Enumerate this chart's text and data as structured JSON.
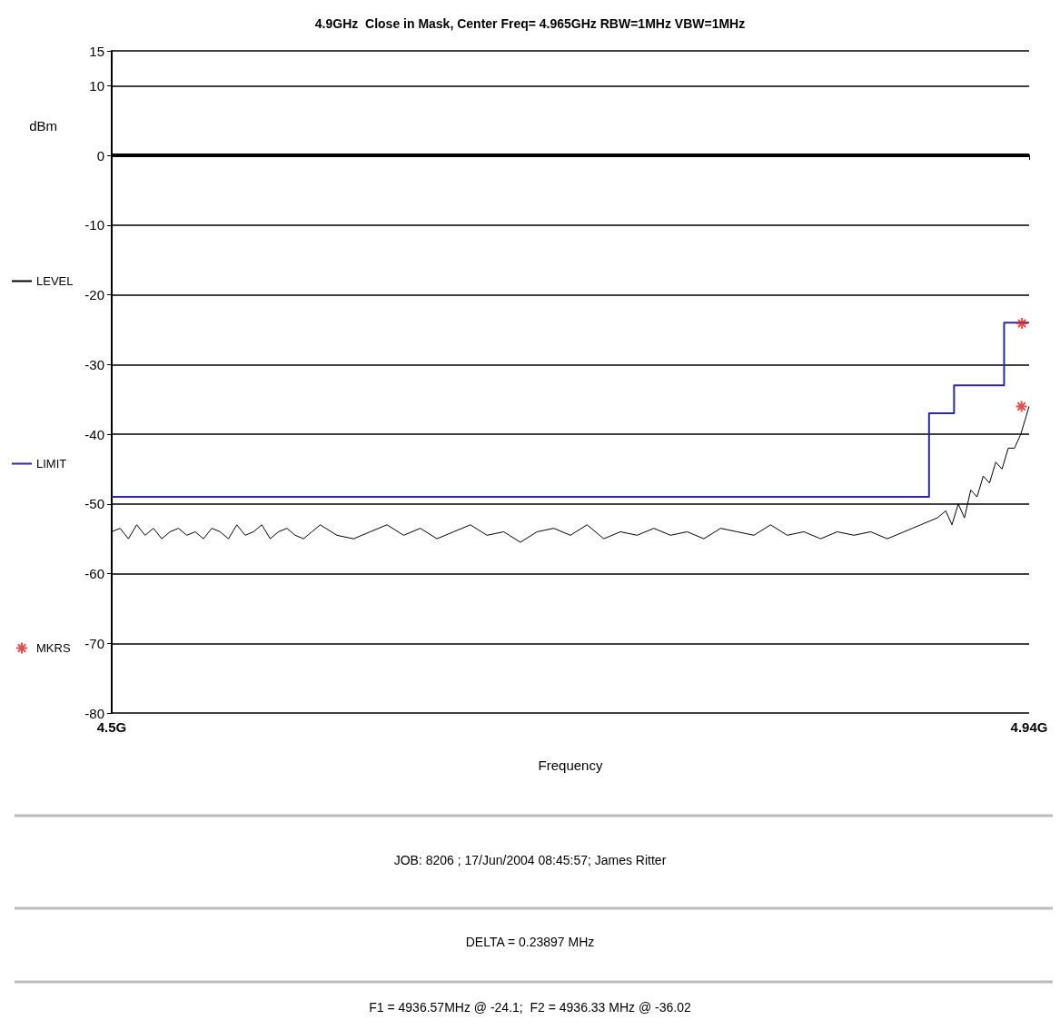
{
  "chart_data": {
    "type": "line",
    "title": "4.9GHz  Close in Mask, Center Freq= 4.965GHz RBW=1MHz VBW=1MHz",
    "xlabel": "Frequency",
    "ylabel": "dBm",
    "xlim": [
      4.5,
      4.94
    ],
    "xticks": [
      {
        "value": 4.5,
        "label": "4.5G"
      },
      {
        "value": 4.94,
        "label": "4.94G"
      }
    ],
    "ylim": [
      -80,
      15
    ],
    "yticks": [
      -80,
      -70,
      -60,
      -50,
      -40,
      -30,
      -20,
      -10,
      0,
      10,
      15
    ],
    "grid": "y",
    "legend": "left",
    "line_style": "solid",
    "ref_lines": [
      {
        "axis": "y",
        "value": 0,
        "color": "#000000"
      }
    ],
    "series": [
      {
        "name": "LEVEL",
        "color": "#000000",
        "x": [
          4.5,
          4.504,
          4.508,
          4.512,
          4.516,
          4.52,
          4.524,
          4.528,
          4.532,
          4.536,
          4.54,
          4.544,
          4.548,
          4.552,
          4.556,
          4.56,
          4.564,
          4.568,
          4.572,
          4.576,
          4.58,
          4.584,
          4.588,
          4.592,
          4.596,
          4.6,
          4.608,
          4.616,
          4.624,
          4.632,
          4.64,
          4.648,
          4.656,
          4.664,
          4.672,
          4.68,
          4.688,
          4.696,
          4.704,
          4.712,
          4.72,
          4.728,
          4.736,
          4.744,
          4.752,
          4.76,
          4.768,
          4.776,
          4.784,
          4.792,
          4.8,
          4.808,
          4.816,
          4.824,
          4.832,
          4.84,
          4.848,
          4.856,
          4.864,
          4.872,
          4.88,
          4.884,
          4.888,
          4.892,
          4.896,
          4.9,
          4.903,
          4.906,
          4.909,
          4.912,
          4.915,
          4.918,
          4.921,
          4.924,
          4.927,
          4.93,
          4.933,
          4.936,
          4.938,
          4.94
        ],
        "values": [
          -54,
          -53.5,
          -55,
          -53,
          -54.5,
          -53.5,
          -55,
          -54,
          -53.5,
          -54.5,
          -54,
          -55,
          -53.5,
          -54,
          -55,
          -53,
          -54.5,
          -54,
          -53,
          -55,
          -54,
          -53.5,
          -54.5,
          -55,
          -54,
          -53,
          -54.5,
          -55,
          -54,
          -53,
          -54.5,
          -53.5,
          -55,
          -54,
          -53,
          -54.5,
          -54,
          -55.5,
          -54,
          -53.5,
          -54.5,
          -53,
          -55,
          -54,
          -54.5,
          -53.5,
          -54.5,
          -54,
          -55,
          -53.5,
          -54,
          -54.5,
          -53,
          -54.5,
          -54,
          -55,
          -54,
          -54.5,
          -54,
          -55,
          -54,
          -53.5,
          -53,
          -52.5,
          -52,
          -51,
          -53,
          -50,
          -52,
          -48,
          -49,
          -46,
          -47,
          -44,
          -45,
          -42,
          -42,
          -40,
          -38,
          -36
        ]
      },
      {
        "name": "LIMIT",
        "type": "step",
        "color": "#2a2aa0",
        "x": [
          4.5,
          4.892,
          4.904,
          4.928,
          4.94
        ],
        "values": [
          -49,
          -37,
          -33,
          -24,
          -24
        ]
      },
      {
        "name": "MKRS",
        "type": "scatter",
        "marker": "cross",
        "color": "#e02020",
        "x": [
          4.93657,
          4.93633
        ],
        "values": [
          -24.1,
          -36.02
        ]
      }
    ],
    "annotations": [
      "JOB: 8206 ; 17/Jun/2004 08:45:57; James Ritter",
      "DELTA = 0.23897 MHz",
      "F1 = 4936.57MHz @ -24.1;  F2 = 4936.33 MHz @ -36.02"
    ]
  }
}
